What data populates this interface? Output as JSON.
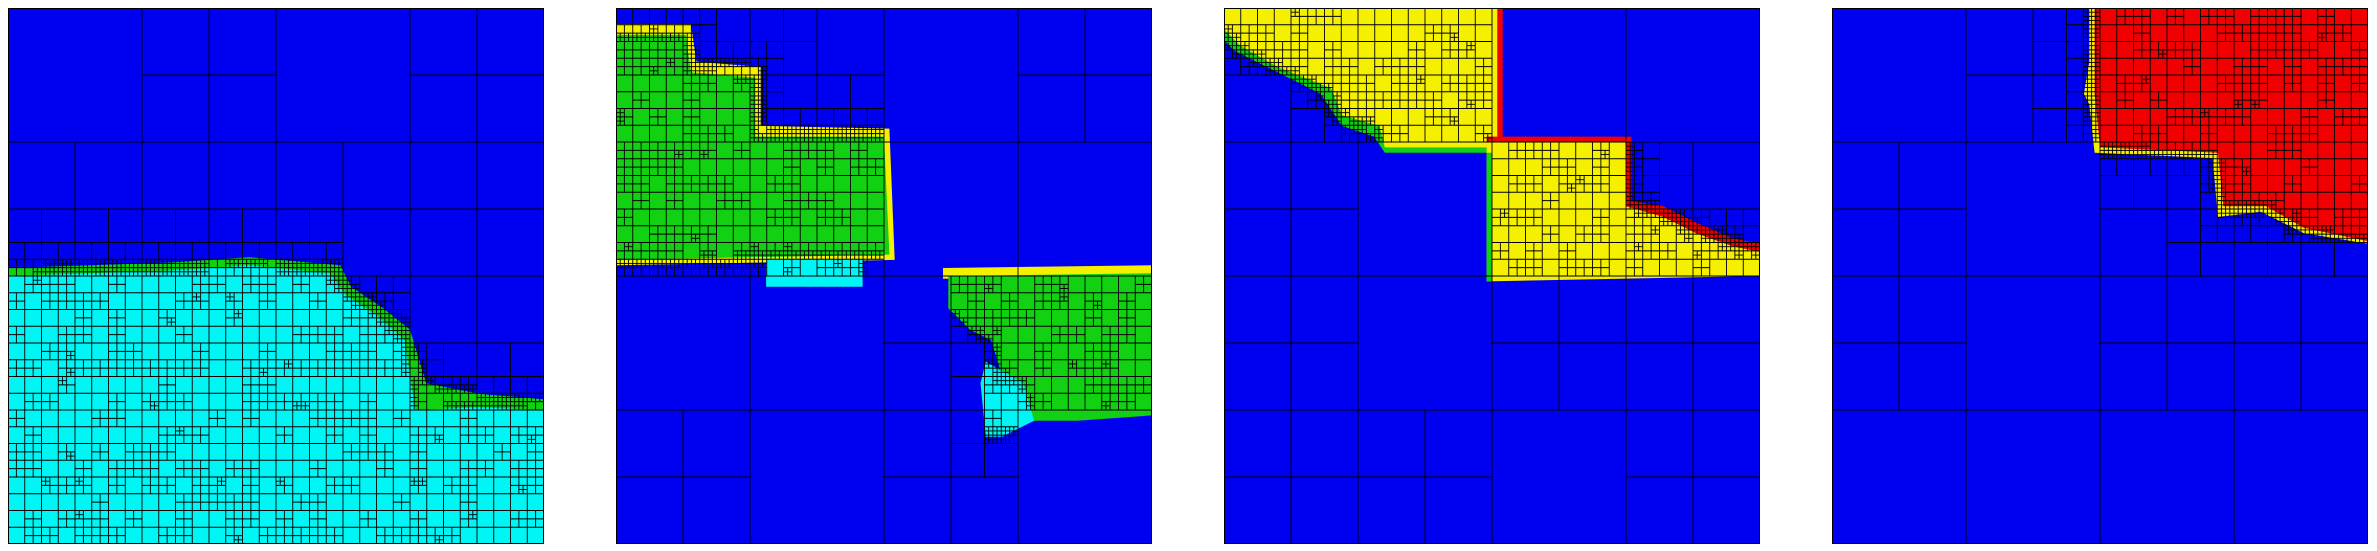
{
  "colors": {
    "background": "#0000f0",
    "grid": "#000000",
    "cyan": "#00f5f5",
    "green": "#12d012",
    "yellow": "#f5f000",
    "red": "#f00000"
  },
  "panels": [
    {
      "id": "panel-1",
      "description_color_regions": [
        "cyan",
        "green"
      ],
      "order": 1
    },
    {
      "id": "panel-2",
      "description_color_regions": [
        "green",
        "yellow",
        "cyan"
      ],
      "order": 2
    },
    {
      "id": "panel-3",
      "description_color_regions": [
        "yellow",
        "red",
        "green"
      ],
      "order": 3
    },
    {
      "id": "panel-4",
      "description_color_regions": [
        "red",
        "yellow"
      ],
      "order": 4
    }
  ]
}
